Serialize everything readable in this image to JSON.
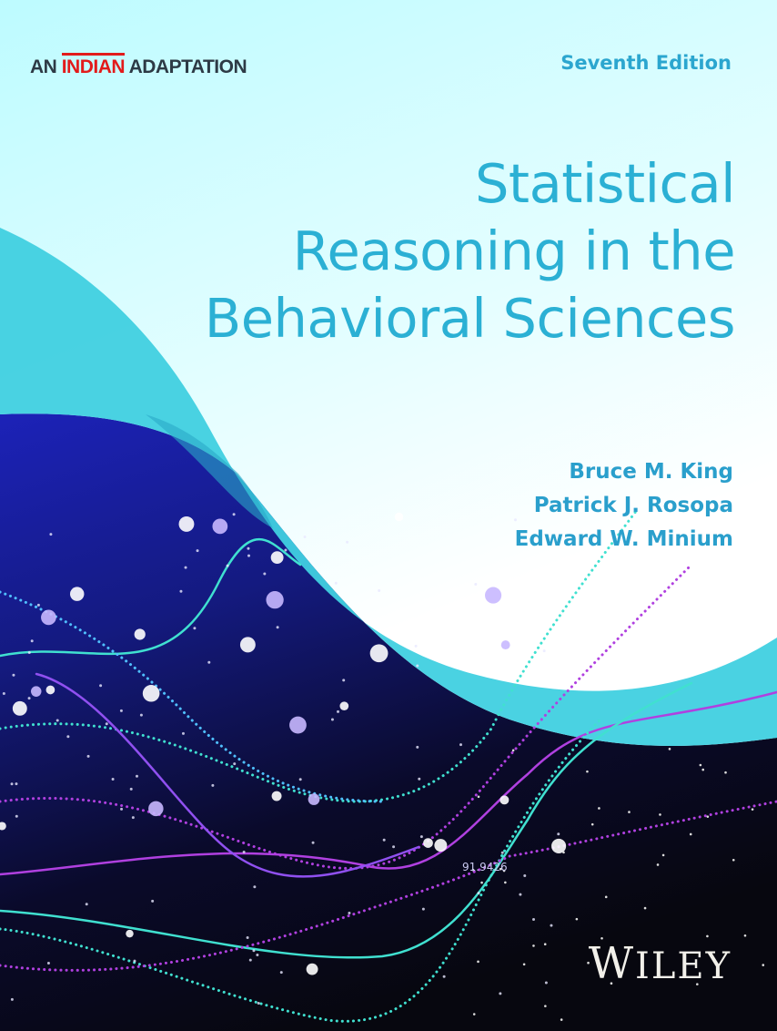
{
  "cover": {
    "adaptation": {
      "prefix": "AN",
      "highlight": "INDIAN",
      "suffix": "ADAPTATION"
    },
    "edition": "Seventh Edition",
    "title_lines": [
      "Statistical",
      "Reasoning in the",
      "Behavioral Sciences"
    ],
    "authors": [
      "Bruce M. King",
      "Patrick J. Rosopa",
      "Edward W. Minium"
    ],
    "graphic_number": "91.9426",
    "publisher": "WILEY",
    "colors": {
      "title": "#2bb0d4",
      "highlight": "#e21b1b",
      "wave": "#40d0e0",
      "dark": "#0a0a1e",
      "sky": "#bdfbff"
    }
  }
}
